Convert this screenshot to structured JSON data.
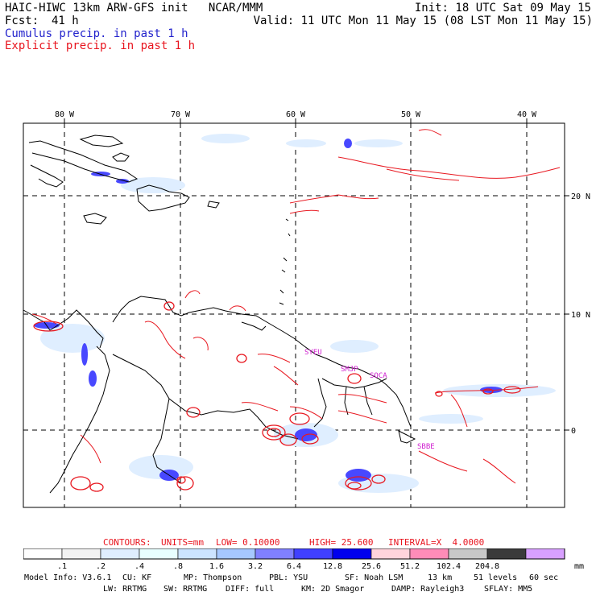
{
  "header": {
    "model_line": "HAIC-HIWC 13km ARW-GFS init   NCAR/MMM",
    "fcst_label": "Fcst:",
    "fcst_value": "41 h",
    "init_line": "Init: 18 UTC Sat 09 May 15",
    "valid_line": "Valid: 11 UTC Mon 11 May 15 (08 LST Mon 11 May 15)",
    "cumulus_line": "Cumulus precip. in past 1 h",
    "explicit_line": "Explicit precip. in past 1 h"
  },
  "map": {
    "longitude_labels": [
      "80 W",
      "70 W",
      "60 W",
      "50 W",
      "40 W"
    ],
    "latitude_labels": [
      "20 N",
      "10 N",
      "0"
    ],
    "station_labels": [
      "SYEU",
      "SMJP",
      "SOCA",
      "SBBE"
    ],
    "colors": {
      "cumulus": "#2233ee",
      "explicit": "#e81820",
      "station": "#d020d0",
      "coast": "#000000"
    }
  },
  "contours_line": {
    "label": "CONTOURS:",
    "units": "UNITS=mm",
    "low": "LOW= 0.10000",
    "high": "HIGH= 25.600",
    "interval": "INTERVAL=X  4.0000"
  },
  "colorbar": {
    "unit": "mm",
    "labels": [
      ".1",
      ".2",
      ".4",
      ".8",
      "1.6",
      "3.2",
      "6.4",
      "12.8",
      "25.6",
      "51.2",
      "102.4",
      "204.8"
    ],
    "colors": [
      "#ffffff",
      "#f2f2f2",
      "#dfeeff",
      "#e8ffff",
      "#cce4ff",
      "#a6c8ff",
      "#8080ff",
      "#4040ff",
      "#0000ee",
      "#ffd4dc",
      "#ff8cb8",
      "#c8c8c8",
      "#3a3a3a",
      "#d8a0ff"
    ]
  },
  "footer": {
    "line1": [
      "Model Info: V3.6.1",
      "CU: KF",
      "MP: Thompson",
      "PBL: YSU",
      "SF: Noah LSM",
      "13 km",
      "51 levels",
      "60 sec"
    ],
    "line2": [
      "LW: RRTMG",
      "SW: RRTMG",
      "DIFF: full",
      "KM: 2D Smagor",
      "DAMP: Rayleigh3",
      "SFLAY: MM5"
    ]
  }
}
